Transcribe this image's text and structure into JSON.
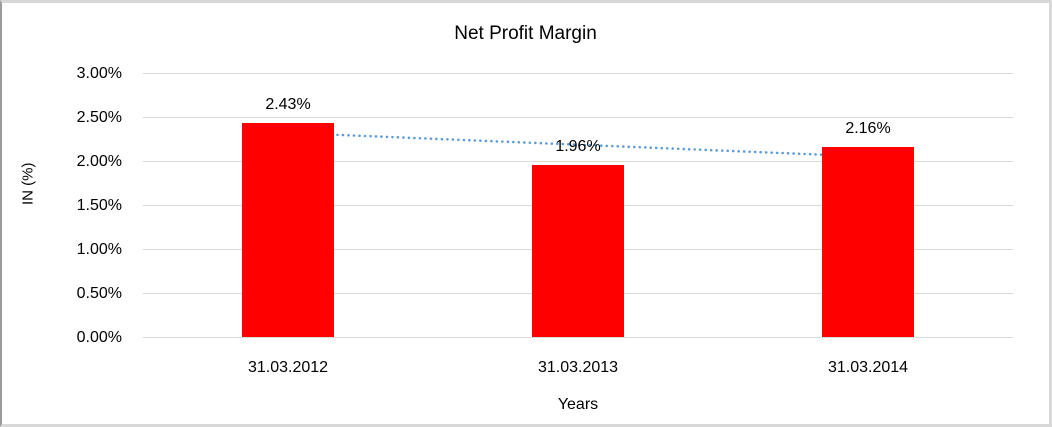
{
  "chart_data": {
    "type": "bar",
    "title": "Net Profit Margin",
    "xlabel": "Years",
    "ylabel": "IN (%)",
    "categories": [
      "31.03.2012",
      "31.03.2013",
      "31.03.2014"
    ],
    "values": [
      2.43,
      1.96,
      2.16
    ],
    "value_labels": [
      "2.43%",
      "1.96%",
      "2.16%"
    ],
    "ylim": [
      0,
      3
    ],
    "yticks": [
      {
        "label": "0.00%",
        "value": 0.0
      },
      {
        "label": "0.50%",
        "value": 0.5
      },
      {
        "label": "1.00%",
        "value": 1.0
      },
      {
        "label": "1.50%",
        "value": 1.5
      },
      {
        "label": "2.00%",
        "value": 2.0
      },
      {
        "label": "2.50%",
        "value": 2.5
      },
      {
        "label": "3.00%",
        "value": 3.0
      }
    ],
    "grid": true,
    "legend": "none",
    "bar_color": "#ff0000",
    "trendline": {
      "kind": "linear",
      "style": "dotted",
      "color": "#5b9bd5",
      "start_value": 2.32,
      "end_value": 2.05
    }
  }
}
